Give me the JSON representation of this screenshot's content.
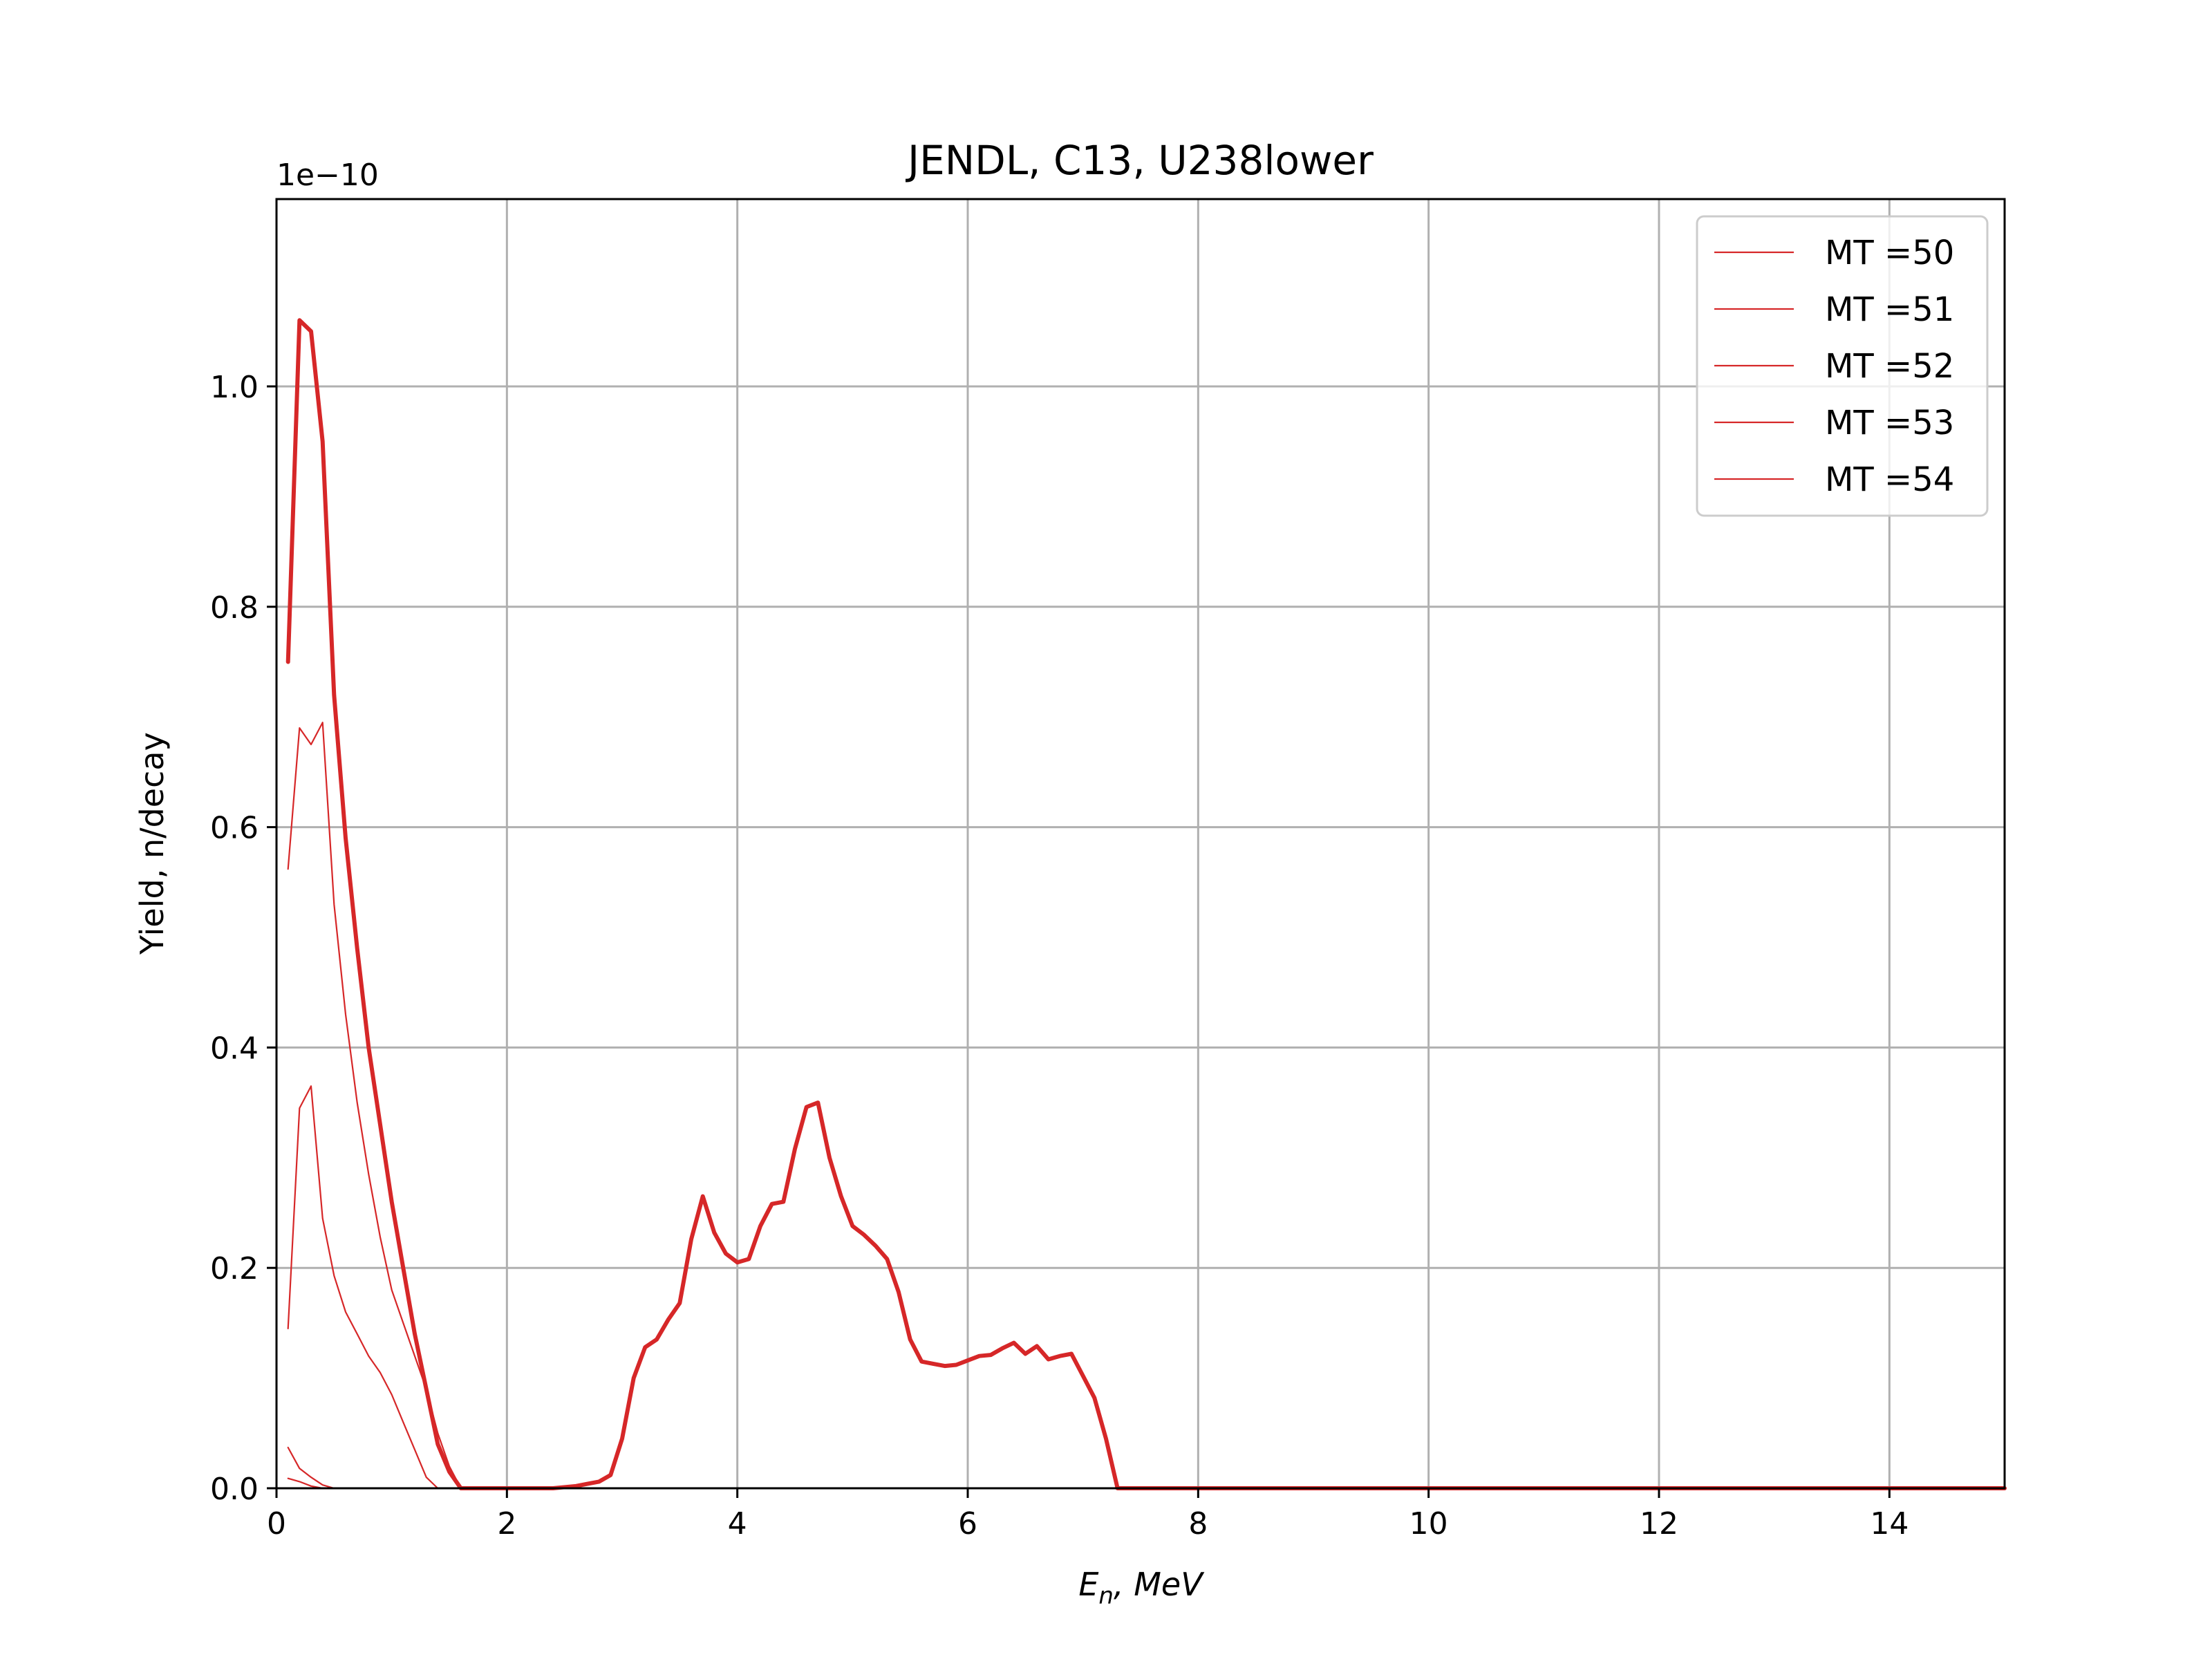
{
  "chart_data": {
    "type": "line",
    "title": "JENDL, C13, U238lower",
    "xlabel_main": "E",
    "xlabel_sub": "n",
    "xlabel_rest": ", MeV",
    "ylabel": "Yield, n/decay",
    "y_offset_text": "1e−10",
    "xlim": [
      0,
      15
    ],
    "ylim": [
      0,
      1.17
    ],
    "x_ticks": [
      0,
      2,
      4,
      6,
      8,
      10,
      12,
      14
    ],
    "x_tick_labels": [
      "0",
      "2",
      "4",
      "6",
      "8",
      "10",
      "12",
      "14"
    ],
    "y_ticks": [
      0,
      0.2,
      0.4,
      0.6,
      0.8,
      1.0
    ],
    "y_tick_labels": [
      "0.0",
      "0.2",
      "0.4",
      "0.6",
      "0.8",
      "1.0"
    ],
    "grid": true,
    "legend_position": "top-right",
    "color": "#d62728",
    "series": [
      {
        "name": "MT =50",
        "thick": true,
        "x": [
          0.1,
          0.2,
          0.3,
          0.4,
          0.5,
          0.6,
          0.7,
          0.8,
          0.9,
          1.0,
          1.1,
          1.2,
          1.3,
          1.4,
          1.5,
          1.6,
          1.7,
          1.8,
          2.0,
          2.2,
          2.4,
          2.6,
          2.7,
          2.8,
          2.9,
          3.0,
          3.1,
          3.2,
          3.3,
          3.4,
          3.5,
          3.6,
          3.7,
          3.8,
          3.9,
          4.0,
          4.1,
          4.2,
          4.3,
          4.4,
          4.5,
          4.6,
          4.7,
          4.8,
          4.9,
          5.0,
          5.1,
          5.2,
          5.3,
          5.4,
          5.5,
          5.6,
          5.7,
          5.8,
          5.9,
          6.0,
          6.1,
          6.2,
          6.3,
          6.4,
          6.5,
          6.6,
          6.7,
          6.8,
          6.9,
          7.0,
          7.1,
          7.2,
          7.3,
          7.4,
          8,
          10,
          12,
          14,
          15
        ],
        "values": [
          0.75,
          1.06,
          1.05,
          0.95,
          0.72,
          0.59,
          0.49,
          0.4,
          0.33,
          0.26,
          0.2,
          0.14,
          0.09,
          0.04,
          0.015,
          0,
          0,
          0,
          0,
          0,
          0,
          0.002,
          0.004,
          0.006,
          0.012,
          0.045,
          0.1,
          0.128,
          0.135,
          0.153,
          0.168,
          0.226,
          0.265,
          0.232,
          0.213,
          0.205,
          0.208,
          0.238,
          0.258,
          0.26,
          0.308,
          0.346,
          0.35,
          0.3,
          0.265,
          0.238,
          0.23,
          0.22,
          0.208,
          0.178,
          0.135,
          0.115,
          0.113,
          0.111,
          0.112,
          0.116,
          0.12,
          0.121,
          0.127,
          0.132,
          0.122,
          0.129,
          0.117,
          0.12,
          0.122,
          0.102,
          0.082,
          0.045,
          0,
          0,
          0,
          0,
          0,
          0,
          0
        ]
      },
      {
        "name": "MT =51",
        "thick": false,
        "x": [
          0.1,
          0.2,
          0.3,
          0.4,
          0.5,
          0.6,
          0.7,
          0.8,
          0.9,
          1.0,
          1.1,
          1.2,
          1.3,
          1.4,
          1.5,
          1.6
        ],
        "values": [
          0.562,
          0.69,
          0.675,
          0.695,
          0.53,
          0.43,
          0.35,
          0.285,
          0.228,
          0.18,
          0.15,
          0.12,
          0.09,
          0.05,
          0.02,
          0
        ]
      },
      {
        "name": "MT =52",
        "thick": false,
        "x": [
          0.1,
          0.2,
          0.3,
          0.4,
          0.5,
          0.6,
          0.7,
          0.8,
          0.9,
          1.0,
          1.1,
          1.2,
          1.3,
          1.4
        ],
        "values": [
          0.145,
          0.345,
          0.365,
          0.245,
          0.193,
          0.16,
          0.14,
          0.12,
          0.105,
          0.085,
          0.06,
          0.035,
          0.01,
          0
        ]
      },
      {
        "name": "MT =53",
        "thick": false,
        "x": [
          0.1,
          0.2,
          0.3,
          0.4,
          0.5,
          0.6
        ],
        "values": [
          0.037,
          0.018,
          0.01,
          0.003,
          0,
          0
        ]
      },
      {
        "name": "MT =54",
        "thick": false,
        "x": [
          0.1,
          0.2,
          0.3,
          0.4
        ],
        "values": [
          0.009,
          0.006,
          0.002,
          0
        ]
      }
    ]
  }
}
